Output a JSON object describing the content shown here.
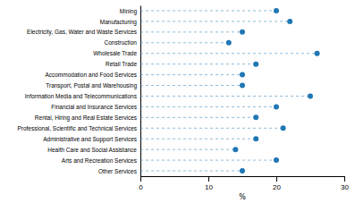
{
  "chart_data": {
    "type": "dot",
    "orientation": "horizontal",
    "categories": [
      "Mining",
      "Manufacturing",
      "Electricity, Gas, Water and Waste Services",
      "Construction",
      "Wholesale Trade",
      "Retail Trade",
      "Accommodation and Food Services",
      "Transport, Postal and Warehousing",
      "Information Media and Telecommunications",
      "Financial and Insurance Services",
      "Rental, Hiring and Real Estate Services",
      "Professional, Scientific and Technical Services",
      "Administrative and Support Services",
      "Health Care and Social Assistance",
      "Arts and Recreation Services",
      "Other Services"
    ],
    "values": [
      20,
      22,
      15,
      13,
      26,
      17,
      15,
      15,
      25,
      20,
      17,
      21,
      17,
      14,
      20,
      15
    ],
    "xlim": [
      0,
      30
    ],
    "xticks": [
      0,
      10,
      20,
      30
    ],
    "xlabel": "%",
    "grid": false
  }
}
